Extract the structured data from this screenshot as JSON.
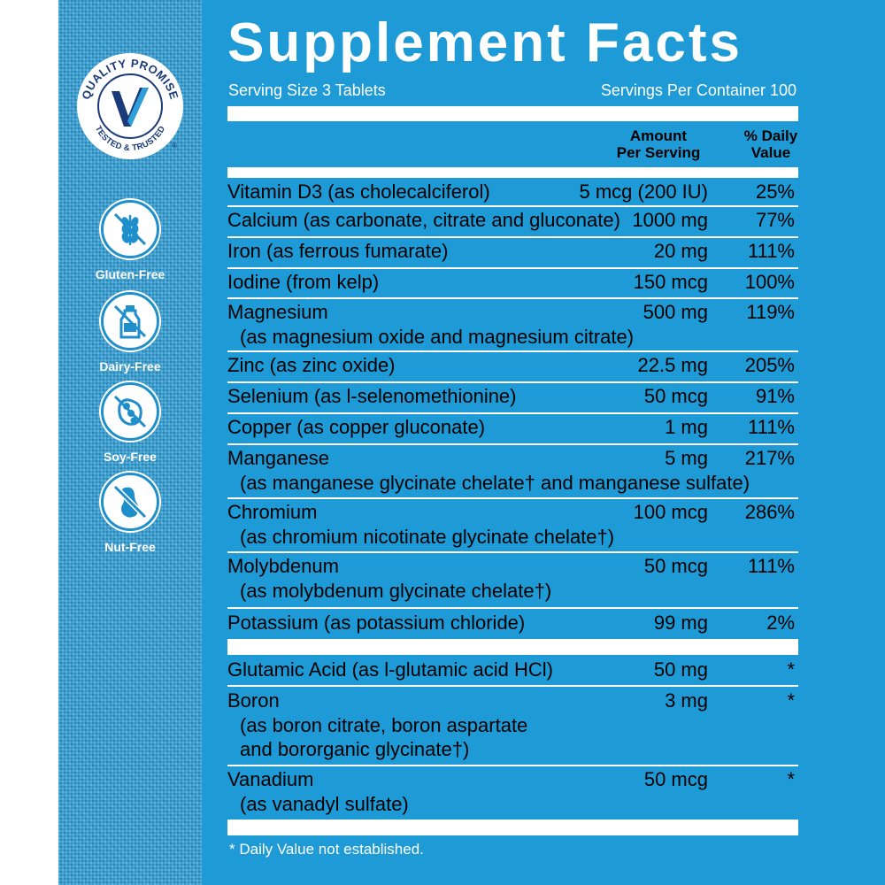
{
  "seal": {
    "text_top": "QUALITY PROMISE",
    "text_bottom": "TESTED & TRUSTED",
    "registered": "®"
  },
  "free_badges": [
    {
      "label": "Gluten-Free",
      "icon": "wheat-icon"
    },
    {
      "label": "Dairy-Free",
      "icon": "milk-bottle-icon"
    },
    {
      "label": "Soy-Free",
      "icon": "soybean-icon"
    },
    {
      "label": "Nut-Free",
      "icon": "peanut-icon"
    }
  ],
  "facts": {
    "title": "Supplement Facts",
    "serving_size": "Serving Size 3 Tablets",
    "servings_per_container": "Servings Per Container 100",
    "col_amount": "Amount\nPer Serving",
    "col_amount_1": "Amount",
    "col_amount_2": "Per Serving",
    "col_dv_1": "% Daily",
    "col_dv_2": "Value",
    "rows": [
      {
        "name": "Vitamin D3 (as cholecalciferol)",
        "sub": [],
        "amount": "5 mcg (200 IU)",
        "dv": "25%"
      },
      {
        "name": "Calcium (as carbonate, citrate and gluconate)",
        "sub": [],
        "amount": "1000 mg",
        "dv": "77%"
      },
      {
        "name": "Iron (as ferrous fumarate)",
        "sub": [],
        "amount": "20 mg",
        "dv": "111%"
      },
      {
        "name": "Iodine (from kelp)",
        "sub": [],
        "amount": "150 mcg",
        "dv": "100%"
      },
      {
        "name": "Magnesium",
        "sub": [
          "(as magnesium oxide and magnesium citrate)"
        ],
        "amount": "500 mg",
        "dv": "119%"
      },
      {
        "name": "Zinc (as zinc oxide)",
        "sub": [],
        "amount": "22.5 mg",
        "dv": "205%"
      },
      {
        "name": "Selenium (as l-selenomethionine)",
        "sub": [],
        "amount": "50 mcg",
        "dv": "91%"
      },
      {
        "name": "Copper (as copper gluconate)",
        "sub": [],
        "amount": "1 mg",
        "dv": "111%"
      },
      {
        "name": "Manganese",
        "sub": [
          "(as manganese glycinate chelate† and manganese sulfate)"
        ],
        "amount": "5 mg",
        "dv": "217%"
      },
      {
        "name": "Chromium",
        "sub": [
          "(as chromium nicotinate glycinate chelate†)"
        ],
        "amount": "100 mcg",
        "dv": "286%"
      },
      {
        "name": "Molybdenum",
        "sub": [
          "(as molybdenum glycinate chelate†)"
        ],
        "amount": "50 mcg",
        "dv": "111%"
      },
      {
        "name": "Potassium (as potassium chloride)",
        "sub": [],
        "amount": "99 mg",
        "dv": "2%"
      },
      {
        "name": "Glutamic Acid (as l-glutamic acid HCl)",
        "sub": [],
        "amount": "50 mg",
        "dv": "*"
      },
      {
        "name": "Boron",
        "sub": [
          "(as boron citrate, boron aspartate",
          "and bororganic glycinate†)"
        ],
        "amount": "3 mg",
        "dv": "*"
      },
      {
        "name": "Vanadium",
        "sub": [
          "(as vanadyl sulfate)"
        ],
        "amount": "50 mcg",
        "dv": "*"
      }
    ],
    "footnote": "* Daily Value not established."
  },
  "colors": {
    "panel_blue": "#1e9ad6",
    "seal_navy": "#1a3a7a",
    "text": "#ffffff"
  }
}
